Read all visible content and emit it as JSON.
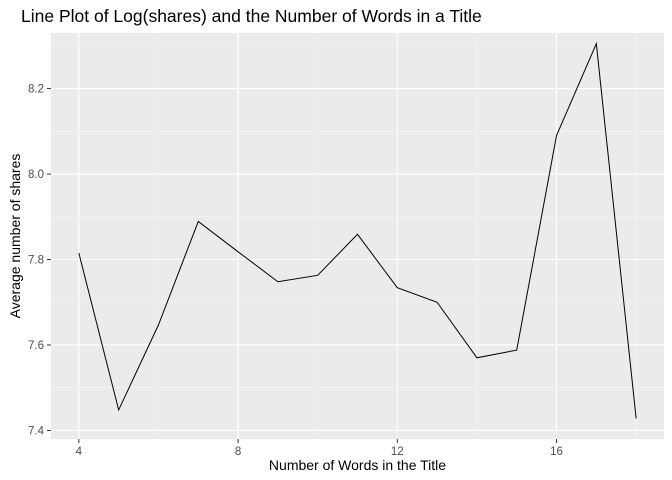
{
  "chart_data": {
    "type": "line",
    "title": "Line Plot of Log(shares) and the Number of Words in a Title",
    "xlabel": "Number of Words in the Title",
    "ylabel": "Average number of shares",
    "x": [
      4,
      5,
      6,
      7,
      8,
      9,
      10,
      11,
      12,
      13,
      14,
      15,
      16,
      17,
      18
    ],
    "series": [
      {
        "values": [
          7.815,
          7.448,
          7.647,
          7.889,
          7.818,
          7.748,
          7.763,
          7.859,
          7.734,
          7.7,
          7.57,
          7.588,
          8.09,
          8.305,
          7.428
        ]
      }
    ],
    "xticks": [
      4,
      8,
      12,
      16
    ],
    "yticks": [
      7.4,
      7.6,
      7.8,
      8.0,
      8.2
    ],
    "xtick_labels": [
      "4",
      "8",
      "12",
      "16"
    ],
    "ytick_labels": [
      "7.4",
      "7.6",
      "7.8",
      "8.0",
      "8.2"
    ],
    "xlim": [
      3.3,
      18.7
    ],
    "ylim": [
      7.38,
      8.33
    ],
    "grid": true,
    "colors": {
      "panel": "#ebebeb",
      "grid_major": "#ffffff",
      "line": "#000000",
      "tick_text": "#4d4d4d"
    }
  }
}
